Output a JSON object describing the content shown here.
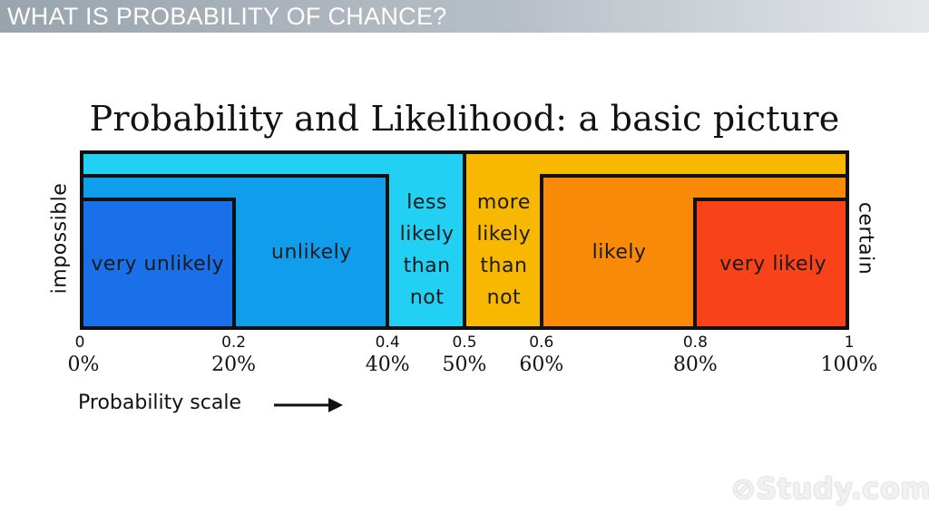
{
  "header": {
    "title": "WHAT IS PROBABILITY OF CHANCE?"
  },
  "diagram": {
    "title": "Probability and Likelihood: a basic picture",
    "left_label": "impossible",
    "right_label": "certain",
    "colors": {
      "outer_left": "#22d0f4",
      "outer_right": "#f8b800",
      "unlikely": "#109eec",
      "very_unlikely": "#1a70e8",
      "likely": "#f88a08",
      "very_likely": "#f8421a",
      "outline": "#111111"
    },
    "regions": [
      {
        "id": "very-unlikely",
        "label": "very unlikely",
        "from": 0,
        "to": 0.2,
        "color_key": "very_unlikely"
      },
      {
        "id": "unlikely",
        "label": "unlikely",
        "from": 0.2,
        "to": 0.4,
        "color_key": "unlikely"
      },
      {
        "id": "less-likely-than-not",
        "label": "less likely than not",
        "from": 0.4,
        "to": 0.5,
        "color_key": "outer_left"
      },
      {
        "id": "more-likely-than-not",
        "label": "more likely than not",
        "from": 0.5,
        "to": 0.6,
        "color_key": "outer_right"
      },
      {
        "id": "likely",
        "label": "likely",
        "from": 0.6,
        "to": 0.8,
        "color_key": "likely"
      },
      {
        "id": "very-likely",
        "label": "very likely",
        "from": 0.8,
        "to": 1,
        "color_key": "very_likely"
      }
    ],
    "ticks": [
      {
        "value": 0,
        "decimal": "0",
        "percent": "0%"
      },
      {
        "value": 0.2,
        "decimal": "0.2",
        "percent": "20%"
      },
      {
        "value": 0.4,
        "decimal": "0.4",
        "percent": "40%"
      },
      {
        "value": 0.5,
        "decimal": "0.5",
        "percent": "50%"
      },
      {
        "value": 0.6,
        "decimal": "0.6",
        "percent": "60%"
      },
      {
        "value": 0.8,
        "decimal": "0.8",
        "percent": "80%"
      },
      {
        "value": 1,
        "decimal": "1",
        "percent": "100%"
      }
    ],
    "scale_label": "Probability scale"
  },
  "watermark": {
    "text": "Study.com"
  }
}
